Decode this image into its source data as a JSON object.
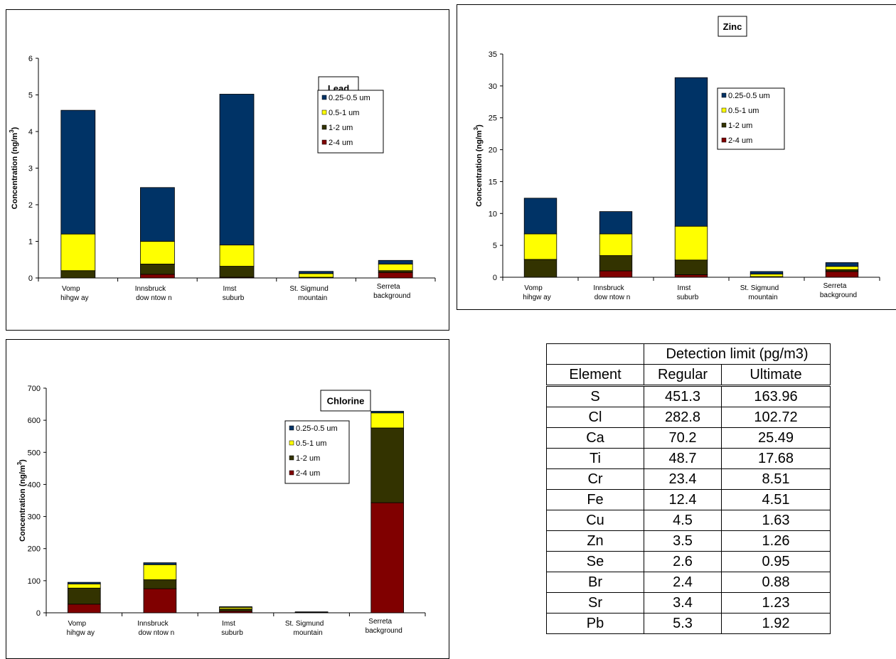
{
  "colors": {
    "0.25-0.5 um": "#003366",
    "0.5-1 um": "#ffff00",
    "1-2 um": "#333300",
    "2-4 um": "#800000"
  },
  "chart_data": [
    {
      "type": "bar",
      "stacked": true,
      "label": "Lead",
      "ylabel": "Concentration (ng/m³)",
      "ylabel_main": "Concentration (ng/m",
      "ylabel_sup": "3",
      "ylabel_end": ")",
      "ylim": [
        0,
        6
      ],
      "yticks": [
        0,
        1,
        2,
        3,
        4,
        5,
        6
      ],
      "categories": [
        [
          "Vomp",
          "hihgw ay"
        ],
        [
          "Innsbruck",
          "dow ntow n"
        ],
        [
          "Imst",
          "suburb"
        ],
        [
          "St. Sigmund",
          "mountain"
        ],
        [
          "Serreta",
          "background"
        ]
      ],
      "legend_position": "right",
      "series": [
        {
          "name": "2-4 um",
          "values": [
            0.0,
            0.1,
            0.02,
            0.0,
            0.15
          ]
        },
        {
          "name": "1-2 um",
          "values": [
            0.2,
            0.28,
            0.3,
            0.02,
            0.05
          ]
        },
        {
          "name": "0.5-1 um",
          "values": [
            1.0,
            0.62,
            0.58,
            0.1,
            0.18
          ]
        },
        {
          "name": "0.25-0.5 um",
          "values": [
            3.38,
            1.47,
            4.12,
            0.06,
            0.1
          ]
        }
      ]
    },
    {
      "type": "bar",
      "stacked": true,
      "label": "Zinc",
      "ylabel": "Concentration (ng/m³)",
      "ylabel_main": "Concentration (ng/m",
      "ylabel_sup": "3",
      "ylabel_end": ")",
      "ylim": [
        0,
        35
      ],
      "yticks": [
        0,
        5,
        10,
        15,
        20,
        25,
        30,
        35
      ],
      "categories": [
        [
          "Vomp",
          "hihgw ay"
        ],
        [
          "Innsbruck",
          "dow ntow n"
        ],
        [
          "Imst",
          "suburb"
        ],
        [
          "St. Sigmund",
          "mountain"
        ],
        [
          "Serreta",
          "background"
        ]
      ],
      "legend_position": "right",
      "series": [
        {
          "name": "2-4 um",
          "values": [
            0.0,
            1.0,
            0.4,
            0.0,
            0.9
          ]
        },
        {
          "name": "1-2 um",
          "values": [
            2.8,
            2.4,
            2.3,
            0.1,
            0.3
          ]
        },
        {
          "name": "0.5-1 um",
          "values": [
            4.0,
            3.4,
            5.3,
            0.4,
            0.5
          ]
        },
        {
          "name": "0.25-0.5 um",
          "values": [
            5.6,
            3.5,
            23.3,
            0.4,
            0.6
          ]
        }
      ]
    },
    {
      "type": "bar",
      "stacked": true,
      "label": "Chlorine",
      "ylabel": "Concentration (ng/m³)",
      "ylabel_main": "Concentration (ng/m",
      "ylabel_sup": "3",
      "ylabel_end": ")",
      "ylim": [
        0,
        700
      ],
      "yticks": [
        0,
        100,
        200,
        300,
        400,
        500,
        600,
        700
      ],
      "categories": [
        [
          "Vomp",
          "hihgw ay"
        ],
        [
          "Innsbruck",
          "dow ntow n"
        ],
        [
          "Imst",
          "suburb"
        ],
        [
          "St. Sigmund",
          "mountain"
        ],
        [
          "Serreta",
          "background"
        ]
      ],
      "legend_position": "right",
      "series": [
        {
          "name": "2-4 um",
          "values": [
            27,
            75,
            5,
            0,
            343
          ]
        },
        {
          "name": "1-2 um",
          "values": [
            50,
            28,
            7,
            1,
            233
          ]
        },
        {
          "name": "0.5-1 um",
          "values": [
            13,
            47,
            5,
            1,
            47
          ]
        },
        {
          "name": "0.25-0.5 um",
          "values": [
            5,
            6,
            2,
            1,
            5
          ]
        }
      ]
    }
  ],
  "detection_table": {
    "group_header": "Detection limit (pg/m3)",
    "columns": [
      "Element",
      "Regular",
      "Ultimate"
    ],
    "rows": [
      [
        "S",
        "451.3",
        "163.96"
      ],
      [
        "Cl",
        "282.8",
        "102.72"
      ],
      [
        "Ca",
        "70.2",
        "25.49"
      ],
      [
        "Ti",
        "48.7",
        "17.68"
      ],
      [
        "Cr",
        "23.4",
        "8.51"
      ],
      [
        "Fe",
        "12.4",
        "4.51"
      ],
      [
        "Cu",
        "4.5",
        "1.63"
      ],
      [
        "Zn",
        "3.5",
        "1.26"
      ],
      [
        "Se",
        "2.6",
        "0.95"
      ],
      [
        "Br",
        "2.4",
        "0.88"
      ],
      [
        "Sr",
        "3.4",
        "1.23"
      ],
      [
        "Pb",
        "5.3",
        "1.92"
      ]
    ]
  }
}
